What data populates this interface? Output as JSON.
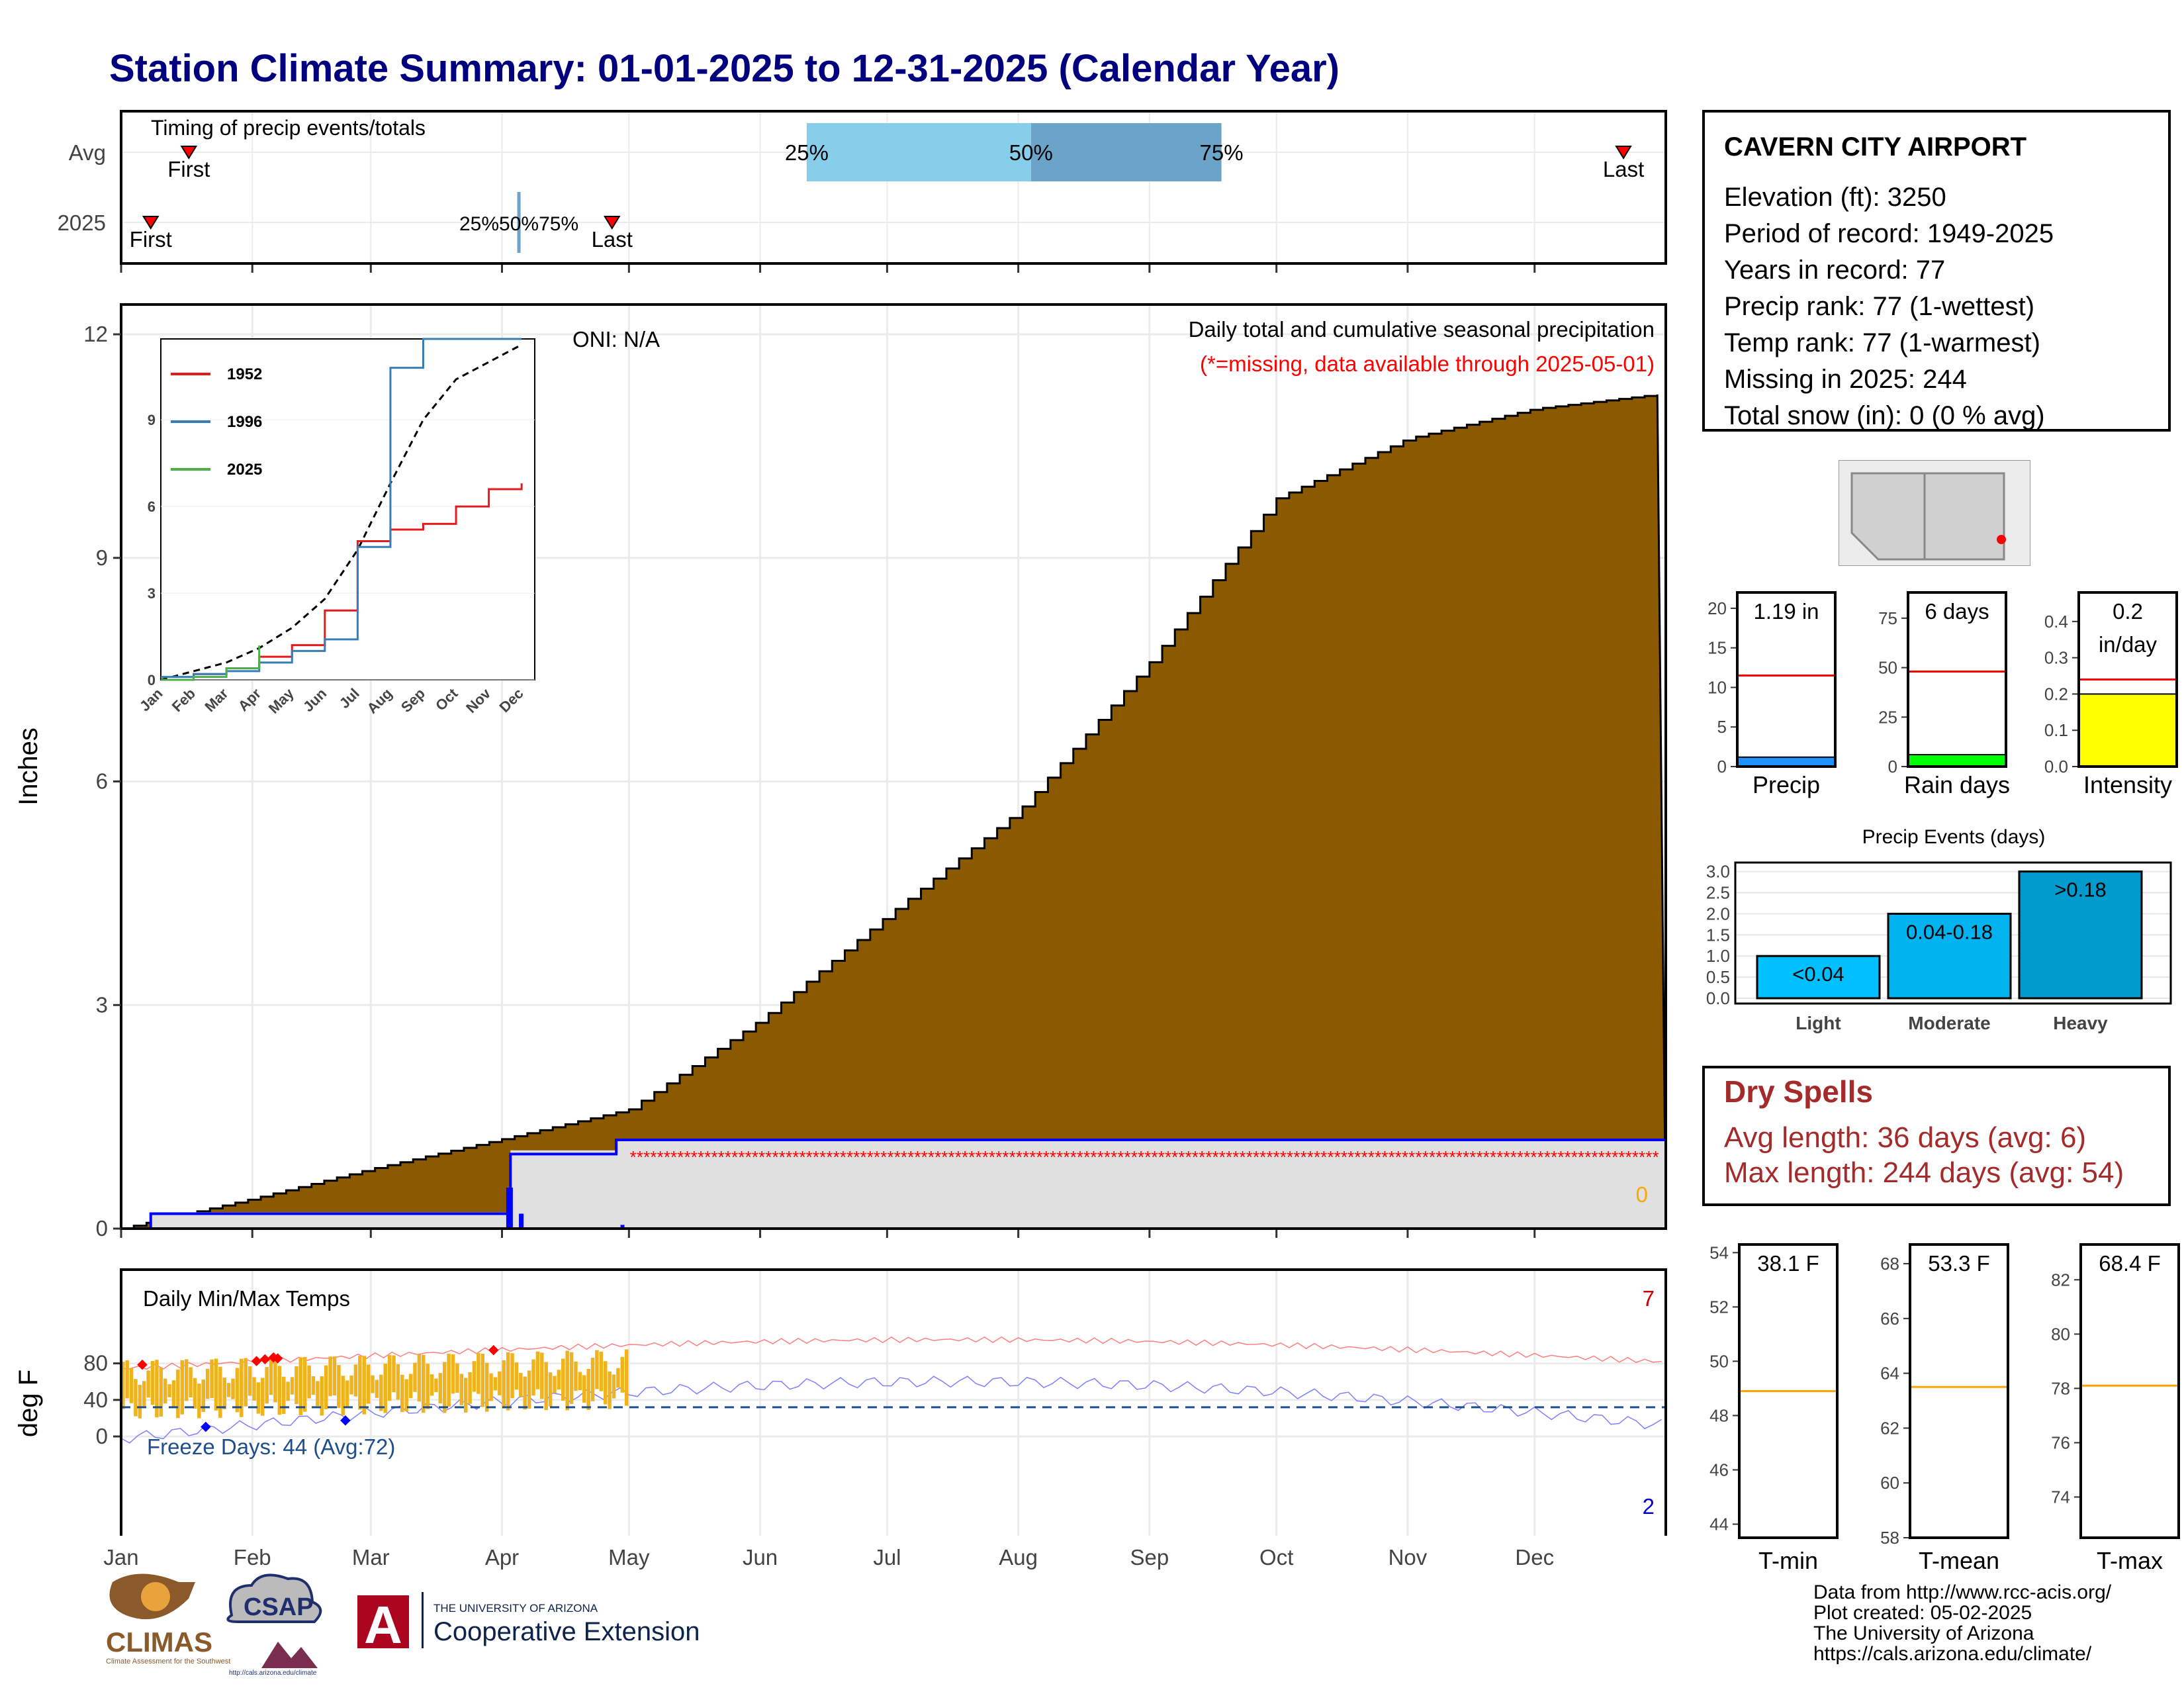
{
  "title": "Station Climate Summary: 01-01-2025 to 12-31-2025 (Calendar Year)",
  "month_labels": [
    "Jan",
    "Feb",
    "Mar",
    "Apr",
    "May",
    "Jun",
    "Jul",
    "Aug",
    "Sep",
    "Oct",
    "Nov",
    "Dec"
  ],
  "timing_panel": {
    "label": "Timing of precip events/totals",
    "row_labels": [
      "Avg",
      "2025"
    ],
    "avg_first_label": "First",
    "avg_last_label": "Last",
    "y2025_first_label": "First",
    "y2025_last_label": "Last",
    "pct25": "25%",
    "pct50": "50%",
    "pct75": "75%",
    "y2025_pct_overlap": "25%50%75%",
    "avg_first_day": 16,
    "avg_last_day": 355,
    "avg_pct25_day": 162,
    "avg_pct50_day": 215,
    "avg_pct75_day": 260,
    "y2025_first_day": 7,
    "y2025_last_day": 116,
    "y2025_pct_day": 94,
    "colors": {
      "q1": "#87ceeb",
      "q2": "#6ba3c9",
      "marker": "#ff0000"
    }
  },
  "precip_panel": {
    "ylabel": "Inches",
    "annotation_title": "Daily total and cumulative seasonal precipitation",
    "annotation_missing": "(*=missing, data available through 2025-05-01)",
    "oni": "ONI: N/A",
    "snow_count": "0",
    "ylim": [
      0,
      12
    ],
    "yticks": [
      "0",
      "3",
      "6",
      "9",
      "12"
    ],
    "colors": {
      "cumulative_fill": "#8b5a00",
      "current_line": "#0000ff",
      "missing": "#ff0000",
      "band": "#e0e0e0"
    }
  },
  "inset": {
    "yticks": [
      "0",
      "3",
      "6",
      "9"
    ],
    "months": [
      "Jan",
      "Feb",
      "Mar",
      "Apr",
      "May",
      "Jun",
      "Jul",
      "Aug",
      "Sep",
      "Oct",
      "Nov",
      "Dec"
    ],
    "legend": [
      {
        "name": "1952",
        "color": "#e41a1c"
      },
      {
        "name": "1996",
        "color": "#377eb8"
      },
      {
        "name": "2025",
        "color": "#4daf4a"
      }
    ]
  },
  "temp_panel": {
    "ylabel": "deg F",
    "label": "Daily Min/Max Temps",
    "freeze": "Freeze Days: 44 (Avg:72)",
    "count_hot": "7",
    "count_cold": "2",
    "yticks": [
      "0",
      "40",
      "80"
    ],
    "freeze_line_f": 32
  },
  "station": {
    "name": "CAVERN CITY AIRPORT",
    "lines": [
      "Elevation (ft): 3250",
      "Period of record: 1949-2025",
      "Years in record: 77",
      "Precip rank: 77 (1-wettest)",
      "Temp rank: 77 (1-warmest)",
      "Missing in 2025: 244",
      "Total snow (in): 0 (0 % avg)"
    ]
  },
  "mini_bars": [
    {
      "label": "Precip",
      "value_text": "1.19 in",
      "value": 1.19,
      "avg": 11.5,
      "ymax": 22,
      "ticks": [
        "0",
        "5",
        "10",
        "15",
        "20"
      ],
      "tick_values": [
        0,
        5,
        10,
        15,
        20
      ],
      "color": "#1e90ff"
    },
    {
      "label": "Rain days",
      "value_text": "6 days",
      "value": 6,
      "avg": 48,
      "ymax": 88,
      "ticks": [
        "0",
        "25",
        "50",
        "75"
      ],
      "tick_values": [
        0,
        25,
        50,
        75
      ],
      "color": "#00ff00"
    },
    {
      "label": "Intensity",
      "value_text": "0.2",
      "value_text2": "in/day",
      "value": 0.2,
      "avg": 0.24,
      "ymax": 0.48,
      "ticks": [
        "0.0",
        "0.1",
        "0.2",
        "0.3",
        "0.4"
      ],
      "tick_values": [
        0,
        0.1,
        0.2,
        0.3,
        0.4
      ],
      "color": "#ffff00"
    }
  ],
  "events_chart": {
    "title": "Precip Events (days)",
    "categories": [
      "Light",
      "Moderate",
      "Heavy"
    ],
    "bar_labels": [
      "<0.04",
      "0.04-0.18",
      ">0.18"
    ],
    "values": [
      1,
      2,
      3
    ],
    "yticks": [
      "0.0",
      "0.5",
      "1.0",
      "1.5",
      "2.0",
      "2.5",
      "3.0"
    ],
    "colors": [
      "#00bfff",
      "#00b2ee",
      "#009acd"
    ]
  },
  "dry_spells": {
    "title": "Dry Spells",
    "avg": "Avg length: 36 days (avg: 6)",
    "max": "Max length: 244 days (avg: 54)"
  },
  "temp_bars": [
    {
      "label": "T-min",
      "value_text": "38.1 F",
      "avg": 48.9,
      "ymin": 43.5,
      "ymax": 54.3,
      "ticks": [
        "44",
        "46",
        "48",
        "50",
        "52",
        "54"
      ],
      "tick_values": [
        44,
        46,
        48,
        50,
        52,
        54
      ]
    },
    {
      "label": "T-mean",
      "value_text": "53.3 F",
      "avg": 63.5,
      "ymin": 58,
      "ymax": 68.7,
      "ticks": [
        "58",
        "60",
        "62",
        "64",
        "66",
        "68"
      ],
      "tick_values": [
        58,
        60,
        62,
        64,
        66,
        68
      ]
    },
    {
      "label": "T-max",
      "value_text": "68.4 F",
      "avg": 78.1,
      "ymin": 72.5,
      "ymax": 83.3,
      "ticks": [
        "74",
        "76",
        "78",
        "80",
        "82"
      ],
      "tick_values": [
        74,
        76,
        78,
        80,
        82
      ]
    }
  ],
  "footer": {
    "lines": [
      "Data from http://www.rcc-acis.org/",
      "Plot created: 05-02-2025",
      "The University of Arizona",
      "https://cals.arizona.edu/climate/"
    ]
  },
  "logos": {
    "climas": "CLIMAS",
    "climas_sub": "Climate Assessment for the Southwest",
    "csap": "CSAP",
    "csap_url": "http://cals.arizona.edu/climate",
    "ua_small": "THE UNIVERSITY OF ARIZONA",
    "ua_big": "Cooperative Extension"
  },
  "chart_data": [
    {
      "type": "area",
      "title": "Daily total and cumulative seasonal precipitation",
      "ylabel": "Inches",
      "ylim": [
        0,
        12
      ],
      "series": [
        {
          "name": "",
          "x": [
            0,
            31,
            59,
            90,
            120,
            151,
            181,
            212,
            243,
            273,
            304,
            334,
            364
          ],
          "values": [
            0.0,
            0.4,
            0.8,
            1.2,
            1.6,
            2.8,
            4.2,
            5.6,
            7.6,
            9.8,
            10.6,
            11.0,
            11.2
          ]
        },
        {
          "name": "",
          "x": [
            0,
            31,
            59,
            90,
            120
          ],
          "values": [
            0.2,
            0.2,
            0.2,
            1.0,
            1.19
          ]
        }
      ]
    },
    {
      "type": "line",
      "ylim": [
        0,
        12
      ],
      "categories": [
        "Jan",
        "Feb",
        "Mar",
        "Apr",
        "May",
        "Jun",
        "Jul",
        "Aug",
        "Sep",
        "Oct",
        "Nov",
        "Dec"
      ],
      "series": [
        {
          "name": "1952",
          "values": [
            0.0,
            0.2,
            0.4,
            0.8,
            1.2,
            2.4,
            4.8,
            5.2,
            5.4,
            6.0,
            6.6,
            6.8
          ]
        },
        {
          "name": "1996",
          "values": [
            0.1,
            0.2,
            0.3,
            0.6,
            1.0,
            1.4,
            4.6,
            10.8,
            11.8,
            11.8,
            11.8,
            11.8
          ]
        },
        {
          "name": "2025",
          "values": [
            0.0,
            0.1,
            0.4,
            1.19,
            null,
            null,
            null,
            null,
            null,
            null,
            null,
            null
          ]
        }
      ]
    },
    {
      "type": "bar",
      "title": "Precip Events (days)",
      "categories": [
        "Light",
        "Moderate",
        "Heavy"
      ],
      "values": [
        1,
        2,
        3
      ],
      "ylim": [
        0,
        3
      ]
    }
  ]
}
